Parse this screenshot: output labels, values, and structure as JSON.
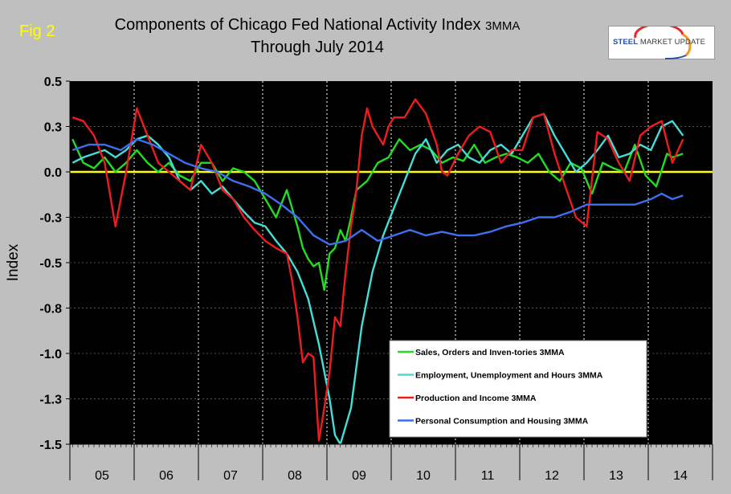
{
  "fig_label": "Fig 2",
  "title_main": "Components of Chicago Fed National Activity Index",
  "title_suffix": "3MMA",
  "title_line2": "Through July 2014",
  "logo": {
    "brand_bold": "STEEL",
    "brand_rest": "MARKET UPDATE",
    "arc_colors": [
      "#e8272b",
      "#f7941d",
      "#2b4ea2"
    ]
  },
  "chart_data": {
    "type": "line",
    "ylabel": "Index",
    "ylim": [
      -1.5,
      0.5
    ],
    "yticks": [
      {
        "value": 0.5,
        "label": "0.5"
      },
      {
        "value": 0.25,
        "label": "0.3"
      },
      {
        "value": 0.0,
        "label": "0.0"
      },
      {
        "value": -0.25,
        "label": "-0.3"
      },
      {
        "value": -0.5,
        "label": "-0.5"
      },
      {
        "value": -0.75,
        "label": "-0.8"
      },
      {
        "value": -1.0,
        "label": "-1.0"
      },
      {
        "value": -1.25,
        "label": "-1.3"
      },
      {
        "value": -1.5,
        "label": "-1.5"
      }
    ],
    "x_start": "2005-01",
    "x_end": "2014-12",
    "year_labels": [
      "05",
      "06",
      "07",
      "08",
      "09",
      "10",
      "11",
      "12",
      "13",
      "14"
    ],
    "zero_line_color": "#ffff00",
    "grid": true,
    "background": "#000000",
    "legend_position": "bottom-right",
    "series": [
      {
        "name": "Sales, Orders and Inven-tories 3MMA",
        "color": "#22dd22",
        "x": [
          "2005-01",
          "2005-03",
          "2005-05",
          "2005-07",
          "2005-09",
          "2005-11",
          "2006-01",
          "2006-03",
          "2006-05",
          "2006-07",
          "2006-09",
          "2006-11",
          "2007-01",
          "2007-03",
          "2007-05",
          "2007-07",
          "2007-09",
          "2007-11",
          "2008-01",
          "2008-03",
          "2008-05",
          "2008-07",
          "2008-08",
          "2008-09",
          "2008-10",
          "2008-11",
          "2008-12",
          "2009-01",
          "2009-02",
          "2009-03",
          "2009-04",
          "2009-05",
          "2009-06",
          "2009-08",
          "2009-10",
          "2009-12",
          "2010-02",
          "2010-04",
          "2010-06",
          "2010-08",
          "2010-10",
          "2010-12",
          "2011-02",
          "2011-04",
          "2011-06",
          "2011-08",
          "2011-10",
          "2011-12",
          "2012-02",
          "2012-04",
          "2012-06",
          "2012-08",
          "2012-10",
          "2012-12",
          "2013-02",
          "2013-04",
          "2013-06",
          "2013-08",
          "2013-10",
          "2013-12",
          "2014-02",
          "2014-04",
          "2014-05",
          "2014-07"
        ],
        "values": [
          0.18,
          0.05,
          0.02,
          0.08,
          0.0,
          0.05,
          0.12,
          0.05,
          0.0,
          0.05,
          -0.02,
          -0.05,
          0.05,
          0.05,
          -0.05,
          0.02,
          0.0,
          -0.05,
          -0.15,
          -0.25,
          -0.1,
          -0.3,
          -0.42,
          -0.48,
          -0.52,
          -0.5,
          -0.65,
          -0.45,
          -0.42,
          -0.32,
          -0.38,
          -0.25,
          -0.1,
          -0.05,
          0.05,
          0.08,
          0.18,
          0.12,
          0.15,
          0.12,
          0.05,
          0.08,
          0.06,
          0.15,
          0.05,
          0.08,
          0.1,
          0.08,
          0.05,
          0.1,
          0.0,
          -0.05,
          0.05,
          0.02,
          -0.12,
          0.05,
          0.02,
          0.0,
          0.15,
          -0.02,
          -0.08,
          0.1,
          0.08,
          0.1
        ]
      },
      {
        "name": "Employment, Unemployment and Hours 3MMA",
        "color": "#44ddd8",
        "x": [
          "2005-01",
          "2005-03",
          "2005-05",
          "2005-07",
          "2005-09",
          "2005-11",
          "2006-01",
          "2006-03",
          "2006-05",
          "2006-07",
          "2006-09",
          "2006-11",
          "2007-01",
          "2007-03",
          "2007-05",
          "2007-07",
          "2007-09",
          "2007-11",
          "2008-01",
          "2008-03",
          "2008-05",
          "2008-07",
          "2008-09",
          "2008-11",
          "2009-01",
          "2009-02",
          "2009-03",
          "2009-05",
          "2009-07",
          "2009-09",
          "2009-11",
          "2010-01",
          "2010-03",
          "2010-05",
          "2010-07",
          "2010-09",
          "2010-11",
          "2011-01",
          "2011-03",
          "2011-05",
          "2011-07",
          "2011-09",
          "2011-11",
          "2012-01",
          "2012-03",
          "2012-05",
          "2012-07",
          "2012-09",
          "2012-11",
          "2013-01",
          "2013-03",
          "2013-05",
          "2013-07",
          "2013-09",
          "2013-11",
          "2014-01",
          "2014-03",
          "2014-05",
          "2014-07"
        ],
        "values": [
          0.05,
          0.08,
          0.1,
          0.12,
          0.08,
          0.12,
          0.18,
          0.2,
          0.15,
          0.08,
          -0.05,
          -0.1,
          -0.05,
          -0.12,
          -0.08,
          -0.15,
          -0.22,
          -0.28,
          -0.3,
          -0.38,
          -0.45,
          -0.55,
          -0.7,
          -0.95,
          -1.25,
          -1.45,
          -1.5,
          -1.3,
          -0.85,
          -0.55,
          -0.35,
          -0.2,
          -0.05,
          0.1,
          0.18,
          0.05,
          0.12,
          0.15,
          0.08,
          0.05,
          0.12,
          0.15,
          0.1,
          0.2,
          0.3,
          0.32,
          0.2,
          0.1,
          0.0,
          0.05,
          0.12,
          0.2,
          0.08,
          0.1,
          0.15,
          0.12,
          0.25,
          0.28,
          0.2
        ]
      },
      {
        "name": "Production and Income 3MMA",
        "color": "#ee1c1c",
        "x": [
          "2005-01",
          "2005-03",
          "2005-05",
          "2005-07",
          "2005-09",
          "2005-11",
          "2006-01",
          "2006-03",
          "2006-05",
          "2006-07",
          "2006-09",
          "2006-11",
          "2007-01",
          "2007-03",
          "2007-05",
          "2007-07",
          "2007-09",
          "2007-11",
          "2008-01",
          "2008-03",
          "2008-05",
          "2008-06",
          "2008-07",
          "2008-08",
          "2008-09",
          "2008-10",
          "2008-11",
          "2008-12",
          "2009-01",
          "2009-02",
          "2009-03",
          "2009-04",
          "2009-05",
          "2009-06",
          "2009-07",
          "2009-08",
          "2009-09",
          "2009-10",
          "2009-11",
          "2009-12",
          "2010-01",
          "2010-03",
          "2010-05",
          "2010-07",
          "2010-09",
          "2010-10",
          "2010-11",
          "2011-01",
          "2011-03",
          "2011-05",
          "2011-07",
          "2011-09",
          "2011-11",
          "2012-01",
          "2012-03",
          "2012-05",
          "2012-07",
          "2012-09",
          "2012-11",
          "2013-01",
          "2013-03",
          "2013-05",
          "2013-07",
          "2013-09",
          "2013-11",
          "2014-01",
          "2014-03",
          "2014-05",
          "2014-07"
        ],
        "values": [
          0.3,
          0.28,
          0.2,
          0.05,
          -0.3,
          0.0,
          0.35,
          0.2,
          0.05,
          0.0,
          -0.05,
          -0.1,
          0.15,
          0.05,
          -0.1,
          -0.15,
          -0.25,
          -0.32,
          -0.38,
          -0.42,
          -0.45,
          -0.6,
          -0.8,
          -1.05,
          -1.0,
          -1.02,
          -1.48,
          -1.3,
          -1.1,
          -0.8,
          -0.85,
          -0.55,
          -0.3,
          -0.1,
          0.2,
          0.35,
          0.25,
          0.2,
          0.15,
          0.25,
          0.3,
          0.3,
          0.4,
          0.32,
          0.15,
          0.0,
          -0.02,
          0.1,
          0.2,
          0.25,
          0.22,
          0.05,
          0.12,
          0.12,
          0.3,
          0.32,
          0.1,
          -0.08,
          -0.25,
          -0.3,
          0.22,
          0.18,
          0.05,
          -0.05,
          0.2,
          0.25,
          0.28,
          0.05,
          0.18
        ]
      },
      {
        "name": "Personal Consumption and Housing 3MMA",
        "color": "#3d6ff0",
        "x": [
          "2005-01",
          "2005-04",
          "2005-07",
          "2005-10",
          "2006-01",
          "2006-04",
          "2006-07",
          "2006-10",
          "2007-01",
          "2007-04",
          "2007-07",
          "2007-10",
          "2008-01",
          "2008-04",
          "2008-07",
          "2008-10",
          "2009-01",
          "2009-04",
          "2009-07",
          "2009-10",
          "2010-01",
          "2010-04",
          "2010-07",
          "2010-10",
          "2011-01",
          "2011-04",
          "2011-07",
          "2011-10",
          "2012-01",
          "2012-04",
          "2012-07",
          "2012-10",
          "2013-01",
          "2013-04",
          "2013-07",
          "2013-10",
          "2014-01",
          "2014-03",
          "2014-05",
          "2014-07"
        ],
        "values": [
          0.12,
          0.15,
          0.15,
          0.12,
          0.18,
          0.15,
          0.1,
          0.05,
          0.02,
          0.0,
          -0.05,
          -0.08,
          -0.12,
          -0.18,
          -0.25,
          -0.35,
          -0.4,
          -0.38,
          -0.32,
          -0.38,
          -0.35,
          -0.32,
          -0.35,
          -0.33,
          -0.35,
          -0.35,
          -0.33,
          -0.3,
          -0.28,
          -0.25,
          -0.25,
          -0.22,
          -0.18,
          -0.18,
          -0.18,
          -0.18,
          -0.15,
          -0.12,
          -0.15,
          -0.13
        ]
      }
    ]
  }
}
